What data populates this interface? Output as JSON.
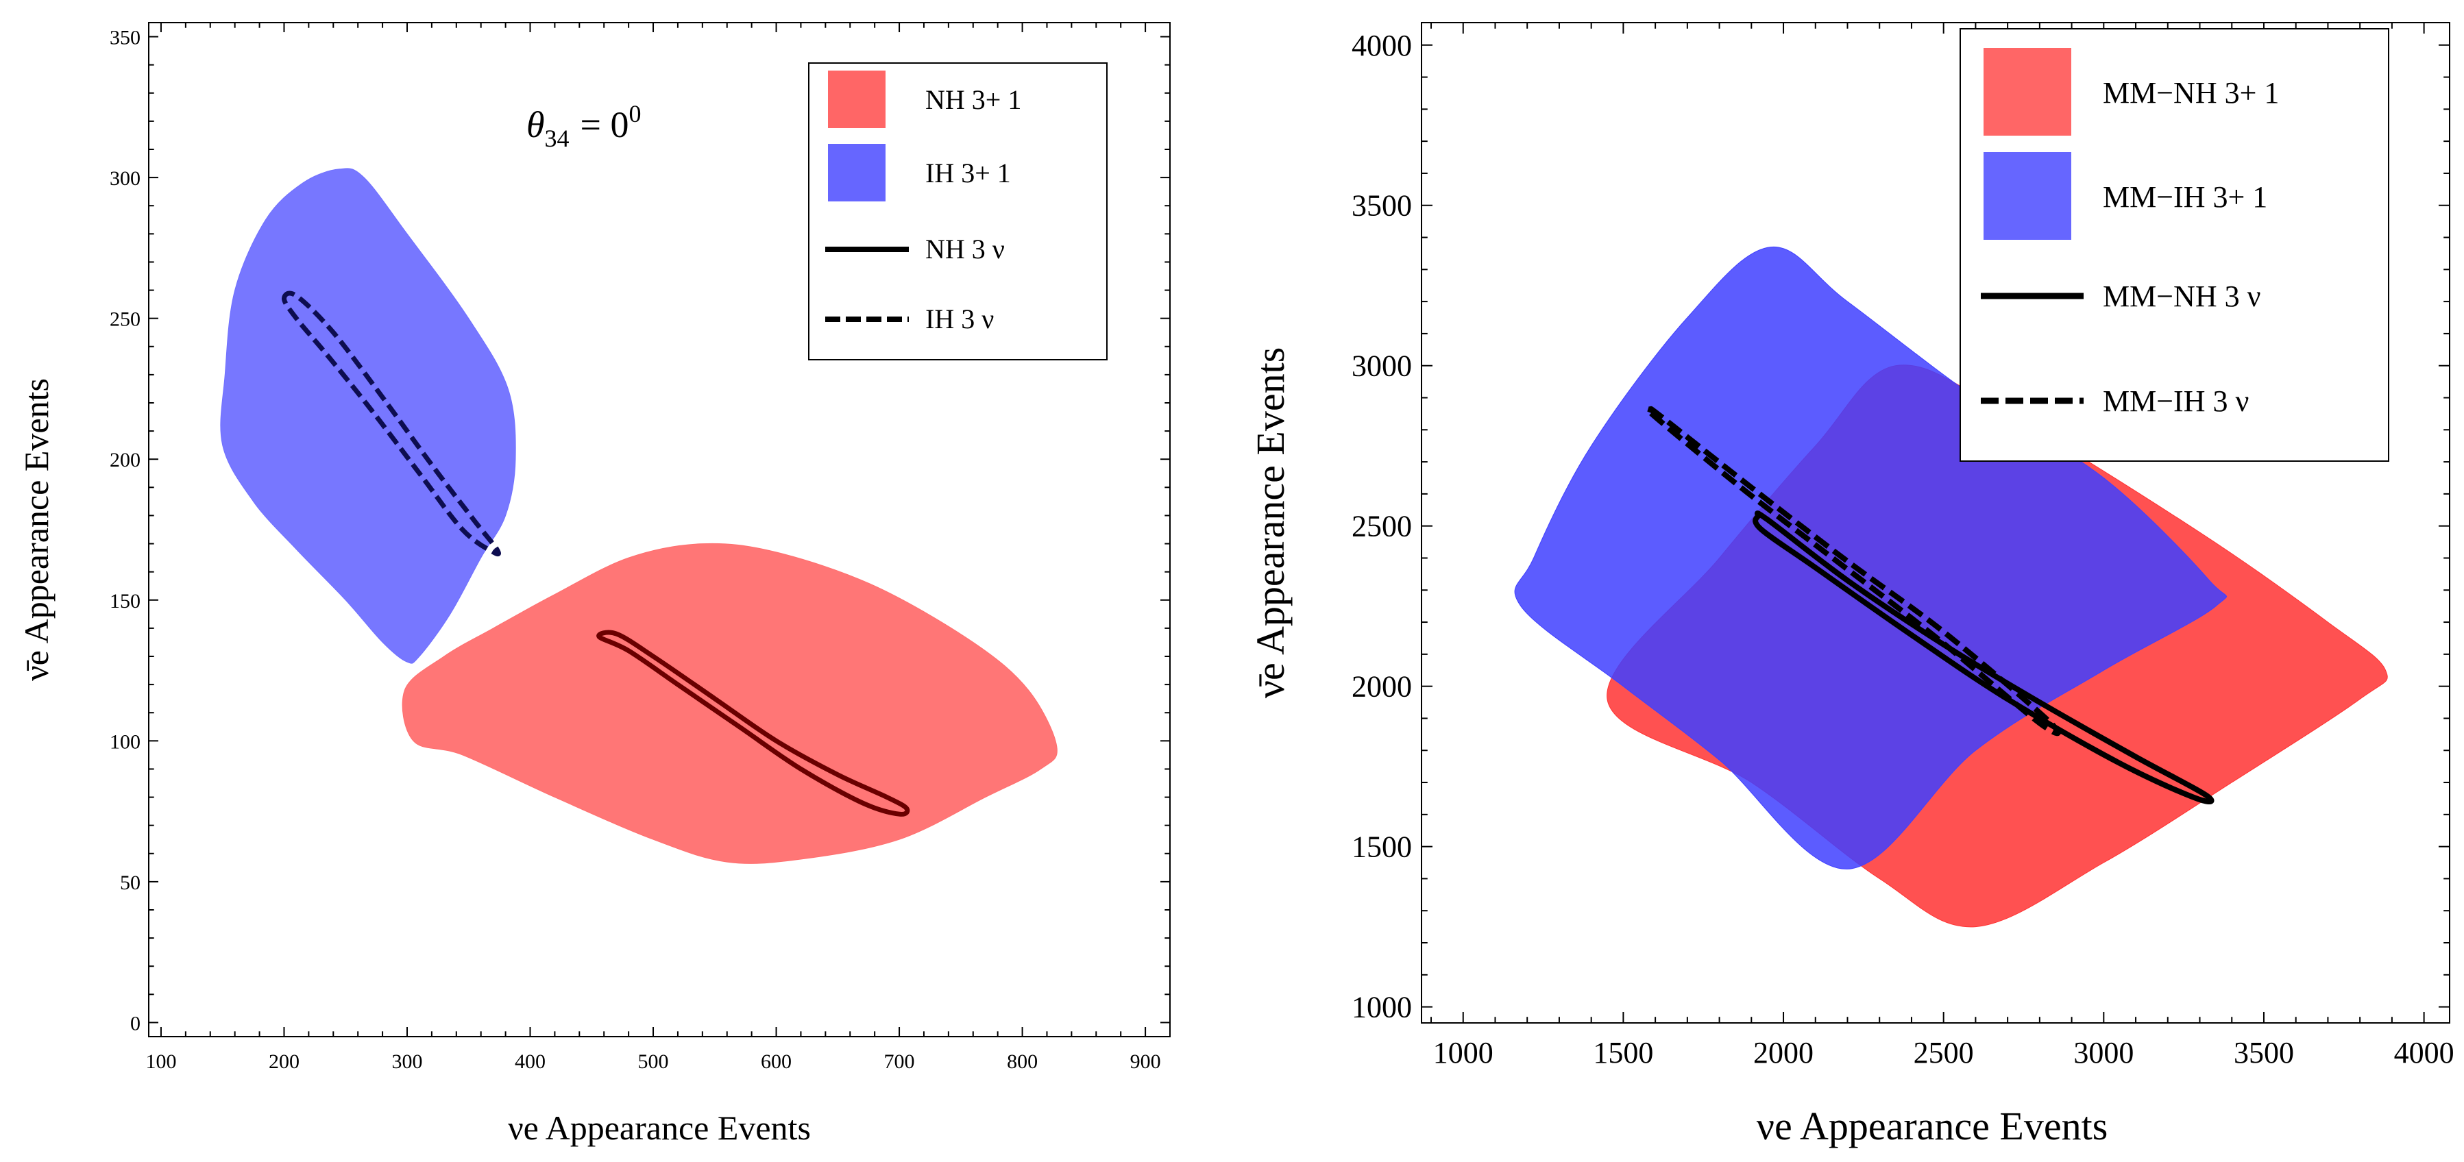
{
  "chart_data": [
    {
      "type": "scatter",
      "subtype": "region-contour",
      "xlabel": "νe Appearance Events",
      "ylabel": "ν̄e Appearance Events",
      "xlim": [
        90,
        920
      ],
      "ylim": [
        -5,
        355
      ],
      "x_ticks": [
        100,
        200,
        300,
        400,
        500,
        600,
        700,
        800,
        900
      ],
      "y_ticks": [
        0,
        50,
        100,
        150,
        200,
        250,
        300,
        350
      ],
      "annotation": {
        "symbol": "θ",
        "sub": "34",
        "eq": "= 0",
        "sup": "0"
      },
      "legend": {
        "position": "top-right",
        "entries": [
          {
            "label": "NH 3+ 1",
            "style": "red-fill",
            "color": "#ff6666"
          },
          {
            "label": "IH 3+ 1",
            "style": "blue-fill",
            "color": "#6666ff"
          },
          {
            "label": "NH 3 ν",
            "style": "solid-line",
            "color": "#000000"
          },
          {
            "label": "IH 3 ν",
            "style": "dashed-line",
            "color": "#000000"
          }
        ]
      },
      "series": [
        {
          "name": "NH 3+ 1",
          "kind": "region",
          "color": "#ff6f6f",
          "points": [
            [
              298,
              118
            ],
            [
              305,
              100
            ],
            [
              345,
              95
            ],
            [
              420,
              80
            ],
            [
              500,
              65
            ],
            [
              560,
              57
            ],
            [
              620,
              58
            ],
            [
              700,
              65
            ],
            [
              770,
              80
            ],
            [
              815,
              90
            ],
            [
              828,
              98
            ],
            [
              805,
              118
            ],
            [
              760,
              135
            ],
            [
              680,
              155
            ],
            [
              600,
              167
            ],
            [
              540,
              170
            ],
            [
              480,
              165
            ],
            [
              420,
              152
            ],
            [
              370,
              140
            ],
            [
              330,
              130
            ]
          ]
        },
        {
          "name": "IH 3+ 1",
          "kind": "region",
          "color": "#7070ff",
          "points": [
            [
              150,
              205
            ],
            [
              152,
              230
            ],
            [
              160,
              260
            ],
            [
              185,
              285
            ],
            [
              215,
              298
            ],
            [
              245,
              303
            ],
            [
              265,
              300
            ],
            [
              300,
              280
            ],
            [
              350,
              250
            ],
            [
              382,
              225
            ],
            [
              388,
              200
            ],
            [
              380,
              180
            ],
            [
              360,
              165
            ],
            [
              335,
              145
            ],
            [
              310,
              130
            ],
            [
              300,
              128
            ],
            [
              280,
              135
            ],
            [
              250,
              150
            ],
            [
              210,
              168
            ],
            [
              175,
              185
            ]
          ]
        },
        {
          "name": "NH 3 ν",
          "kind": "ellipse",
          "color": "#6a0000",
          "linestyle": "solid",
          "points": [
            [
              456,
              137
            ],
            [
              470,
              138
            ],
            [
              500,
              130
            ],
            [
              550,
              115
            ],
            [
              600,
              100
            ],
            [
              650,
              88
            ],
            [
              690,
              80
            ],
            [
              706,
              76
            ],
            [
              700,
              74
            ],
            [
              670,
              78
            ],
            [
              620,
              90
            ],
            [
              570,
              105
            ],
            [
              520,
              120
            ],
            [
              480,
              132
            ]
          ]
        },
        {
          "name": "IH 3 ν",
          "kind": "ellipse",
          "color": "#0d0d50",
          "linestyle": "dashed",
          "points": [
            [
              200,
              257
            ],
            [
              210,
              258
            ],
            [
              240,
              245
            ],
            [
              280,
              222
            ],
            [
              320,
              198
            ],
            [
              355,
              178
            ],
            [
              373,
              168
            ],
            [
              370,
              167
            ],
            [
              345,
              175
            ],
            [
              310,
              195
            ],
            [
              270,
              218
            ],
            [
              235,
              237
            ],
            [
              210,
              250
            ]
          ]
        }
      ]
    },
    {
      "type": "scatter",
      "subtype": "region-contour",
      "xlabel": "νe Appearance Events",
      "ylabel": "ν̄e Appearance Events",
      "xlim": [
        870,
        4080
      ],
      "ylim": [
        950,
        4070
      ],
      "x_ticks": [
        1000,
        1500,
        2000,
        2500,
        3000,
        3500,
        4000
      ],
      "y_ticks": [
        1000,
        1500,
        2000,
        2500,
        3000,
        3500,
        4000
      ],
      "legend": {
        "position": "top-right",
        "entries": [
          {
            "label": "MM−NH 3+ 1",
            "style": "red-fill",
            "color": "#ff6666"
          },
          {
            "label": "MM−IH 3+ 1",
            "style": "blue-fill",
            "color": "#6666ff"
          },
          {
            "label": "MM−NH 3 ν",
            "style": "solid-line",
            "color": "#000000"
          },
          {
            "label": "MM−IH 3 ν",
            "style": "dashed-line",
            "color": "#000000"
          }
        ]
      },
      "series": [
        {
          "name": "MM−NH 3+ 1",
          "kind": "region",
          "color": "#ff3333",
          "points": [
            [
              1450,
              1960
            ],
            [
              1800,
              2400
            ],
            [
              2100,
              2750
            ],
            [
              2350,
              3000
            ],
            [
              2700,
              2850
            ],
            [
              3300,
              2480
            ],
            [
              3700,
              2200
            ],
            [
              3880,
              2050
            ],
            [
              3800,
              1960
            ],
            [
              3400,
              1700
            ],
            [
              3000,
              1450
            ],
            [
              2600,
              1250
            ],
            [
              2300,
              1400
            ],
            [
              1900,
              1700
            ]
          ]
        },
        {
          "name": "MM−IH 3+ 1",
          "kind": "region",
          "color": "#4040ff",
          "points": [
            [
              1180,
              2250
            ],
            [
              1220,
              2400
            ],
            [
              1400,
              2750
            ],
            [
              1700,
              3150
            ],
            [
              1960,
              3370
            ],
            [
              2200,
              3200
            ],
            [
              2600,
              2900
            ],
            [
              3000,
              2650
            ],
            [
              3330,
              2330
            ],
            [
              3350,
              2250
            ],
            [
              3000,
              2050
            ],
            [
              2600,
              1800
            ],
            [
              2200,
              1430
            ],
            [
              1800,
              1770
            ],
            [
              1500,
              2000
            ]
          ]
        },
        {
          "name": "MM−NH 3 ν",
          "kind": "ellipse",
          "color": "#000000",
          "linestyle": "solid",
          "points": [
            [
              1920,
              2530
            ],
            [
              1950,
              2520
            ],
            [
              2200,
              2330
            ],
            [
              2500,
              2130
            ],
            [
              2800,
              1950
            ],
            [
              3100,
              1780
            ],
            [
              3320,
              1660
            ],
            [
              3290,
              1650
            ],
            [
              3050,
              1760
            ],
            [
              2700,
              1960
            ],
            [
              2400,
              2160
            ],
            [
              2100,
              2370
            ],
            [
              1930,
              2490
            ]
          ]
        },
        {
          "name": "MM−IH 3 ν",
          "kind": "ellipse",
          "color": "#000000",
          "linestyle": "dashed",
          "points": [
            [
              1590,
              2860
            ],
            [
              1620,
              2840
            ],
            [
              1900,
              2620
            ],
            [
              2200,
              2390
            ],
            [
              2500,
              2170
            ],
            [
              2830,
              1890
            ],
            [
              2800,
              1885
            ],
            [
              2480,
              2150
            ],
            [
              2180,
              2380
            ],
            [
              1880,
              2610
            ],
            [
              1600,
              2840
            ]
          ]
        }
      ]
    }
  ]
}
